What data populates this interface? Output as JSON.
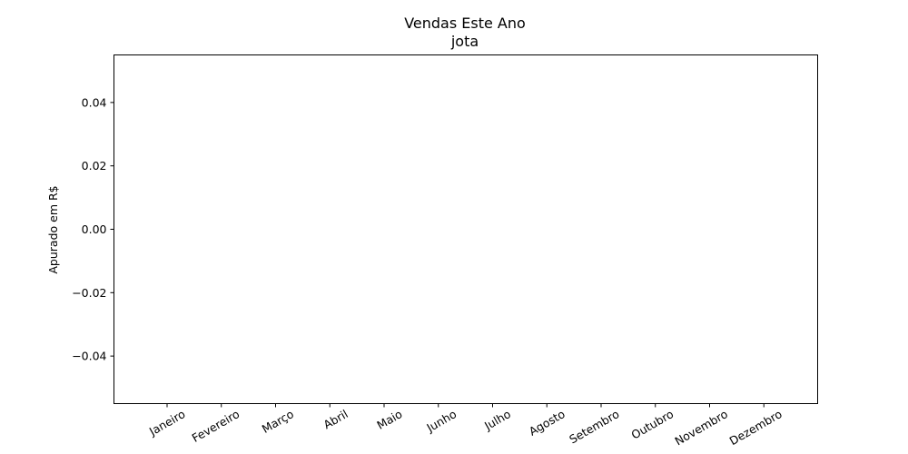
{
  "chart_data": {
    "type": "bar",
    "title": "Vendas Este Ano",
    "subtitle": "jota",
    "xlabel": "",
    "ylabel": "Apurado em R$",
    "categories": [
      "Janeiro",
      "Fevereiro",
      "Março",
      "Abril",
      "Maio",
      "Junho",
      "Julho",
      "Agosto",
      "Setembro",
      "Outubro",
      "Novembro",
      "Dezembro"
    ],
    "values": [
      0,
      0,
      0,
      0,
      0,
      0,
      0,
      0,
      0,
      0,
      0,
      0
    ],
    "ylim": [
      -0.055,
      0.055
    ],
    "yticks": [
      "0.04",
      "0.02",
      "0.00",
      "−0.02",
      "−0.04"
    ],
    "ytick_values": [
      0.04,
      0.02,
      0,
      -0.02,
      -0.04
    ],
    "grid": false,
    "legend": "none"
  }
}
